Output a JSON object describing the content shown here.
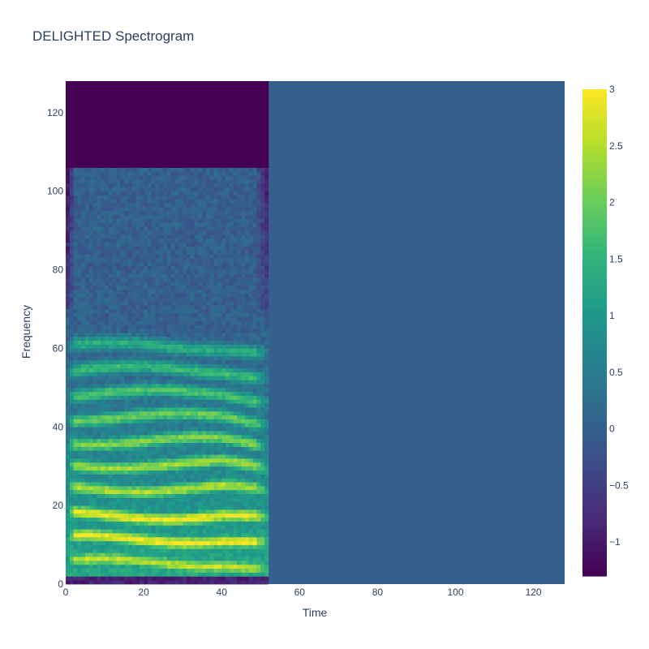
{
  "chart_data": {
    "type": "heatmap",
    "title": "DELIGHTED Spectrogram",
    "xlabel": "Time",
    "ylabel": "Frequency",
    "xlim": [
      0,
      128
    ],
    "ylim": [
      0,
      128
    ],
    "x_ticks": [
      0,
      20,
      40,
      60,
      80,
      100,
      120
    ],
    "y_ticks": [
      0,
      20,
      40,
      60,
      80,
      100,
      120
    ],
    "colorscale": "Viridis",
    "zmin": -1.3,
    "zmax": 3,
    "colorbar_ticks": [
      3,
      2.5,
      2,
      1.5,
      1,
      0.5,
      0,
      -0.5,
      -1
    ],
    "colorbar_tick_labels": [
      "3",
      "2.5",
      "2",
      "1.5",
      "1",
      "0.5",
      "0",
      "−0.5",
      "−1"
    ],
    "speech_end_time": 52,
    "padding_value": 0,
    "harmonic_bands": [
      {
        "freq": 5,
        "level": 2.6
      },
      {
        "freq": 11,
        "level": 2.95
      },
      {
        "freq": 17,
        "level": 2.95
      },
      {
        "freq": 24,
        "level": 2.5
      },
      {
        "freq": 30,
        "level": 2.4
      },
      {
        "freq": 36,
        "level": 2.2
      },
      {
        "freq": 42,
        "level": 2.0
      },
      {
        "freq": 48,
        "level": 1.8
      },
      {
        "freq": 54,
        "level": 1.6
      },
      {
        "freq": 60,
        "level": 1.4
      }
    ]
  }
}
